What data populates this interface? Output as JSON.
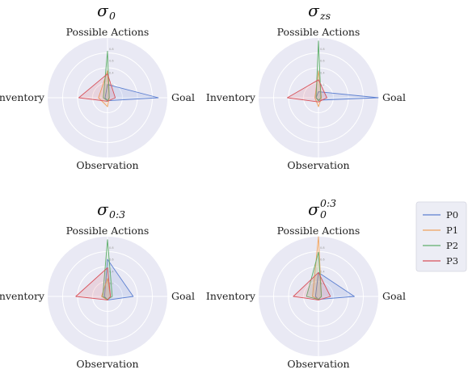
{
  "chart_data": {
    "type": "radar",
    "axes": [
      "Possible Actions",
      "Goal",
      "Observation",
      "Inventory"
    ],
    "series_names": [
      "P0",
      "P1",
      "P2",
      "P3"
    ],
    "series_colors": [
      "#5b7fd1",
      "#f0a35e",
      "#5fae6c",
      "#d9515a"
    ],
    "radial_range": [
      0,
      1
    ],
    "radial_ticks": [
      "0.2",
      "0.4",
      "0.6",
      "0.8"
    ],
    "grid": true,
    "legend_position": "right",
    "background": "#e9e9f4",
    "panels": [
      {
        "title_main": "σ",
        "title_sub": "0",
        "title_sup": "",
        "series": [
          {
            "name": "P0",
            "values": {
              "Possible Actions": 0.22,
              "Goal": 0.85,
              "Observation": 0.05,
              "Inventory": 0.04
            }
          },
          {
            "name": "P1",
            "values": {
              "Possible Actions": 0.45,
              "Goal": 0.03,
              "Observation": 0.15,
              "Inventory": 0.15
            }
          },
          {
            "name": "P2",
            "values": {
              "Possible Actions": 0.78,
              "Goal": 0.03,
              "Observation": 0.05,
              "Inventory": 0.07
            }
          },
          {
            "name": "P3",
            "values": {
              "Possible Actions": 0.4,
              "Goal": 0.13,
              "Observation": 0.06,
              "Inventory": 0.48
            }
          }
        ]
      },
      {
        "title_main": "σ",
        "title_sub": "zs",
        "title_sup": "",
        "series": [
          {
            "name": "P0",
            "values": {
              "Possible Actions": 0.1,
              "Goal": 1.0,
              "Observation": 0.04,
              "Inventory": 0.04
            }
          },
          {
            "name": "P1",
            "values": {
              "Possible Actions": 0.45,
              "Goal": 0.05,
              "Observation": 0.15,
              "Inventory": 0.06
            }
          },
          {
            "name": "P2",
            "values": {
              "Possible Actions": 0.95,
              "Goal": 0.04,
              "Observation": 0.05,
              "Inventory": 0.04
            }
          },
          {
            "name": "P3",
            "values": {
              "Possible Actions": 0.3,
              "Goal": 0.14,
              "Observation": 0.07,
              "Inventory": 0.52
            }
          }
        ]
      },
      {
        "title_main": "σ",
        "title_sub": "0:3",
        "title_sup": "",
        "series": [
          {
            "name": "P0",
            "values": {
              "Possible Actions": 0.62,
              "Goal": 0.43,
              "Observation": 0.06,
              "Inventory": 0.05
            }
          },
          {
            "name": "P1",
            "values": {
              "Possible Actions": 0.3,
              "Goal": 0.05,
              "Observation": 0.06,
              "Inventory": 0.1
            }
          },
          {
            "name": "P2",
            "values": {
              "Possible Actions": 0.95,
              "Goal": 0.08,
              "Observation": 0.05,
              "Inventory": 0.08
            }
          },
          {
            "name": "P3",
            "values": {
              "Possible Actions": 0.48,
              "Goal": 0.05,
              "Observation": 0.06,
              "Inventory": 0.53
            }
          }
        ]
      },
      {
        "title_main": "σ",
        "title_sub": "0",
        "title_sup": "0:3",
        "series": [
          {
            "name": "P0",
            "values": {
              "Possible Actions": 0.4,
              "Goal": 0.6,
              "Observation": 0.05,
              "Inventory": 0.05
            }
          },
          {
            "name": "P1",
            "values": {
              "Possible Actions": 1.0,
              "Goal": 0.05,
              "Observation": 0.05,
              "Inventory": 0.1
            }
          },
          {
            "name": "P2",
            "values": {
              "Possible Actions": 0.74,
              "Goal": 0.05,
              "Observation": 0.05,
              "Inventory": 0.2
            }
          },
          {
            "name": "P3",
            "values": {
              "Possible Actions": 0.4,
              "Goal": 0.2,
              "Observation": 0.06,
              "Inventory": 0.42
            }
          }
        ]
      }
    ]
  }
}
